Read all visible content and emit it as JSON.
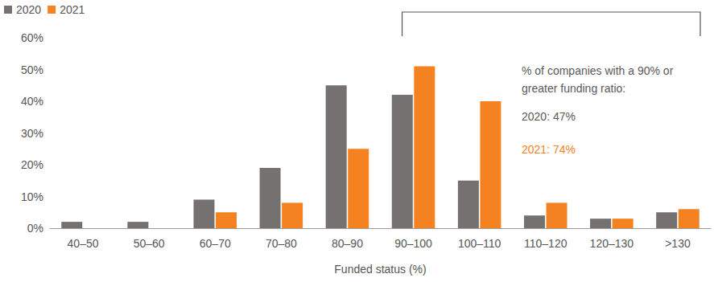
{
  "chart_data": {
    "type": "bar",
    "x_label": "Funded status (%)",
    "categories": [
      "40–50",
      "50–60",
      "60–70",
      "70–80",
      "80–90",
      "90–100",
      "100–110",
      "110–120",
      "120–130",
      ">130"
    ],
    "series": [
      {
        "name": "2020",
        "color": "#767171",
        "values": [
          2,
          2,
          9,
          19,
          45,
          42,
          15,
          4,
          3,
          5
        ]
      },
      {
        "name": "2021",
        "color": "#F58220",
        "values": [
          0,
          0,
          5,
          8,
          25,
          51,
          40,
          8,
          3,
          6
        ]
      }
    ],
    "ylim": [
      0,
      60
    ],
    "yticks": [
      {
        "value": 0,
        "label": "0%"
      },
      {
        "value": 10,
        "label": "10%"
      },
      {
        "value": 20,
        "label": "20%"
      },
      {
        "value": 30,
        "label": "30%"
      },
      {
        "value": 40,
        "label": "40%"
      },
      {
        "value": 50,
        "label": "50%"
      },
      {
        "value": 60,
        "label": "60%"
      }
    ],
    "grid": false,
    "legend": "top-left",
    "data_labels": false,
    "annotations": [
      {
        "text": "% of companies with a 90% or",
        "color": "#595959"
      },
      {
        "text": "greater funding ratio:",
        "color": "#595959"
      },
      {
        "text": "2020: 47%",
        "color": "#595959"
      },
      {
        "text": "2021: 74%",
        "color": "#F58220"
      }
    ]
  }
}
